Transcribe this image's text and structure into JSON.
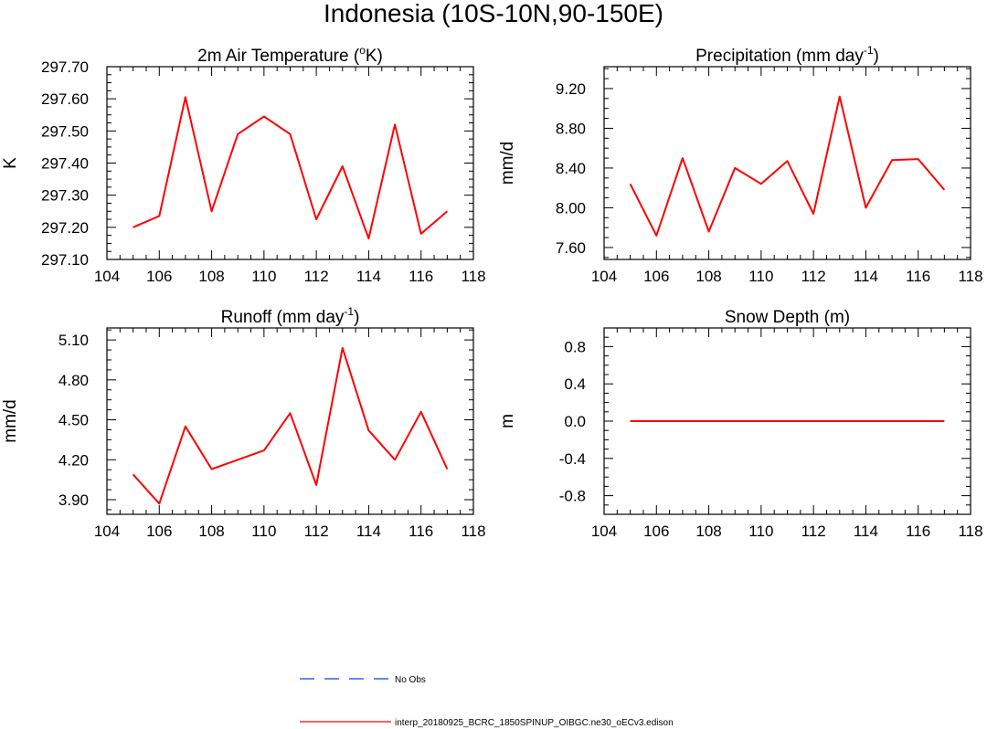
{
  "figure": {
    "title": "Indonesia (10S-10N,90-150E)",
    "line_color": "#ff0000",
    "obs_color": "#3c5aff"
  },
  "legend": {
    "entries": [
      {
        "label": "No Obs",
        "style": "dashed",
        "color": "#3c5aff"
      },
      {
        "label": "interp_20180925_BCRC_1850SPINUP_OIBGC.ne30_oECv3.edison",
        "style": "solid",
        "color": "#ff0000"
      }
    ]
  },
  "chart_data": [
    {
      "type": "line",
      "title": "2m Air Temperature (",
      "title_sup": "o",
      "title_end": "K)",
      "xlabel": "",
      "ylabel": "K",
      "xlim": [
        104,
        118
      ],
      "ylim": [
        297.1,
        297.7
      ],
      "xticks": [
        104,
        106,
        108,
        110,
        112,
        114,
        116,
        118
      ],
      "yticks": [
        297.1,
        297.2,
        297.3,
        297.4,
        297.5,
        297.6,
        297.7
      ],
      "ytick_labels": [
        "297.10",
        "297.20",
        "297.30",
        "297.40",
        "297.50",
        "297.60",
        "297.70"
      ],
      "x": [
        105,
        106,
        107,
        108,
        109,
        110,
        111,
        112,
        113,
        114,
        115,
        116,
        117
      ],
      "series": [
        {
          "values": [
            297.2,
            297.235,
            297.605,
            297.25,
            297.49,
            297.545,
            297.49,
            297.225,
            297.39,
            297.165,
            297.52,
            297.18,
            297.25
          ]
        }
      ]
    },
    {
      "type": "line",
      "title": "Precipitation (mm day",
      "title_sup": "-1",
      "title_end": ")",
      "xlabel": "",
      "ylabel": "mm/d",
      "xlim": [
        104,
        118
      ],
      "ylim": [
        7.48,
        9.42
      ],
      "xticks": [
        104,
        106,
        108,
        110,
        112,
        114,
        116,
        118
      ],
      "yticks": [
        7.6,
        8.0,
        8.4,
        8.8,
        9.2
      ],
      "ytick_labels": [
        "7.60",
        "8.00",
        "8.40",
        "8.80",
        "9.20"
      ],
      "x": [
        105,
        106,
        107,
        108,
        109,
        110,
        111,
        112,
        113,
        114,
        115,
        116,
        117
      ],
      "series": [
        {
          "values": [
            8.24,
            7.72,
            8.5,
            7.76,
            8.4,
            8.24,
            8.47,
            7.94,
            9.12,
            8.0,
            8.48,
            8.49,
            8.18
          ]
        }
      ]
    },
    {
      "type": "line",
      "title": "Runoff (mm day",
      "title_sup": "-1",
      "title_end": ")",
      "xlabel": "",
      "ylabel": "mm/d",
      "xlim": [
        104,
        118
      ],
      "ylim": [
        3.79,
        5.19
      ],
      "xticks": [
        104,
        106,
        108,
        110,
        112,
        114,
        116,
        118
      ],
      "yticks": [
        3.9,
        4.2,
        4.5,
        4.8,
        5.1
      ],
      "ytick_labels": [
        "3.90",
        "4.20",
        "4.50",
        "4.80",
        "5.10"
      ],
      "x": [
        105,
        106,
        107,
        108,
        109,
        110,
        111,
        112,
        113,
        114,
        115,
        116,
        117
      ],
      "series": [
        {
          "values": [
            4.09,
            3.87,
            4.45,
            4.13,
            4.2,
            4.27,
            4.55,
            4.01,
            5.04,
            4.42,
            4.2,
            4.56,
            4.13
          ]
        }
      ]
    },
    {
      "type": "line",
      "title": "Snow Depth (m)",
      "title_sup": "",
      "title_end": "",
      "xlabel": "",
      "ylabel": "m",
      "xlim": [
        104,
        118
      ],
      "ylim": [
        -1.0,
        1.0
      ],
      "xticks": [
        104,
        106,
        108,
        110,
        112,
        114,
        116,
        118
      ],
      "yticks": [
        -0.8,
        -0.4,
        0.0,
        0.4,
        0.8
      ],
      "ytick_labels": [
        "-0.8",
        "-0.4",
        "0.0",
        "0.4",
        "0.8"
      ],
      "x": [
        105,
        106,
        107,
        108,
        109,
        110,
        111,
        112,
        113,
        114,
        115,
        116,
        117
      ],
      "series": [
        {
          "values": [
            0,
            0,
            0,
            0,
            0,
            0,
            0,
            0,
            0,
            0,
            0,
            0,
            0
          ]
        }
      ]
    }
  ]
}
